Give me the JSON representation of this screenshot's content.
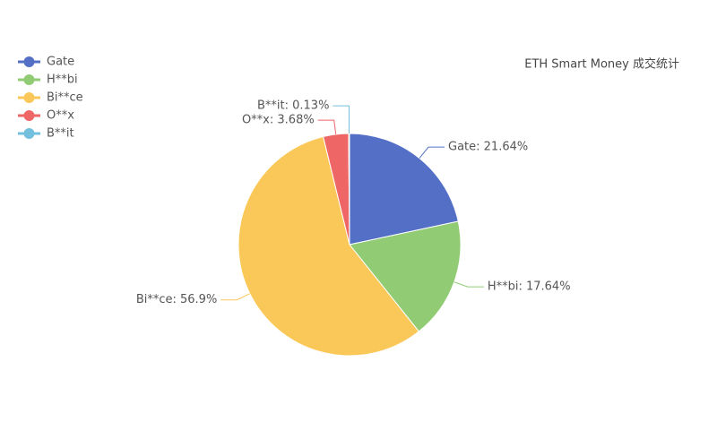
{
  "chart_data": {
    "type": "pie",
    "title": "ETH Smart Money 成交统计",
    "categories": [
      "Gate",
      "H**bi",
      "Bi**ce",
      "O**x",
      "B**it"
    ],
    "values": [
      21.64,
      17.64,
      56.9,
      3.68,
      0.13
    ],
    "value_labels": [
      "Gate: 21.64%",
      "H**bi: 17.64%",
      "Bi**ce: 56.9%",
      "O**x: 3.68%",
      "B**it: 0.13%"
    ],
    "colors": [
      "#5470c6",
      "#91cc75",
      "#fac858",
      "#ee6666",
      "#73c0de"
    ],
    "legend": "top-left"
  }
}
